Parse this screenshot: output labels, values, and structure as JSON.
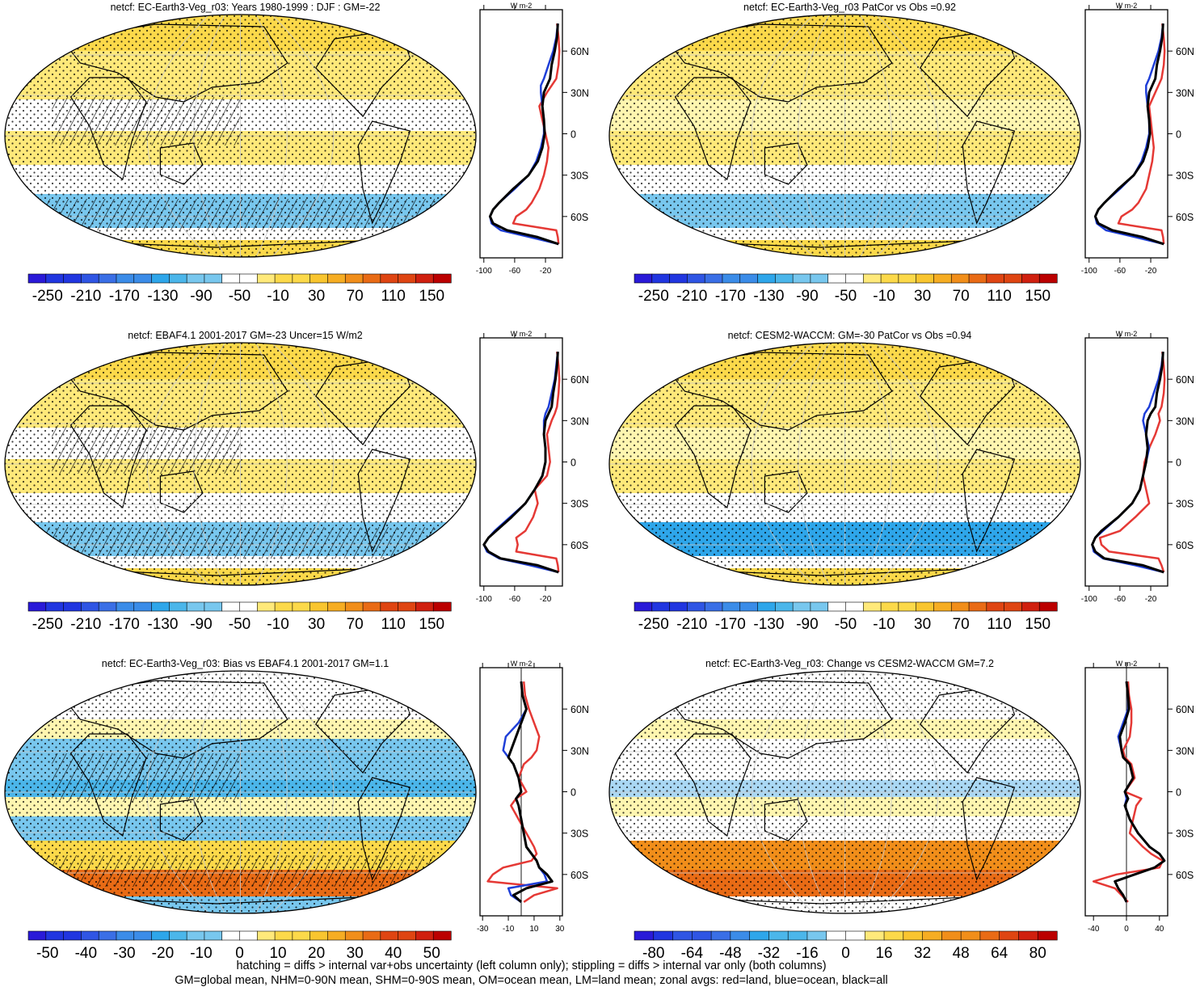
{
  "colors": {
    "land_line": "#e53935",
    "ocean_line": "#1f3fd8",
    "all_line": "#000000",
    "warm_palette": [
      "#fff6b0",
      "#ffe97a",
      "#fcd94a",
      "#f9c52f",
      "#f6ad23",
      "#f18e1a",
      "#e96b15",
      "#df4512",
      "#d0200f",
      "#bb0000"
    ],
    "cool_palette": [
      "#2a1ad8",
      "#2136e0",
      "#2f55e4",
      "#3a6fe6",
      "#3b8ce8",
      "#2ea6ea",
      "#4bb6ea",
      "#78c7ee",
      "#aad8f4"
    ]
  },
  "footer": {
    "line1": "hatching = diffs > internal var+obs uncertainty (left column only); stippling = diffs > internal var only (both columns)",
    "line2": "GM=global mean, NHM=0-90N mean, SHM=0-90S mean, OM=ocean mean, LM=land mean; zonal avgs: red=land, blue=ocean, black=all"
  },
  "chart_data": [
    {
      "type": "heatmap",
      "title": "netcf: EC-Earth3-Veg_r03: Years 1980-1999 : DJF : GM=-22",
      "colorbar_ticks": [
        "-250",
        "-210",
        "-170",
        "-130",
        "-90",
        "-50",
        "-10",
        "30",
        "70",
        "110",
        "150"
      ],
      "colorbar_levels": 24,
      "colorbar_min": -270,
      "colorbar_max": 170,
      "stippling": true,
      "hatching": true,
      "zonal": {
        "unit": "W m-2",
        "lat_ticks": [
          "60N",
          "30N",
          "0",
          "30S",
          "60S"
        ],
        "x_ticks": [
          "-100",
          "-60",
          "-20"
        ],
        "xlim": [
          -105,
          2
        ],
        "lat": [
          80,
          70,
          60,
          50,
          40,
          35,
          30,
          20,
          10,
          0,
          -10,
          -20,
          -30,
          -40,
          -50,
          -55,
          -60,
          -65,
          -70,
          -75,
          -80
        ],
        "series": [
          {
            "name": "land",
            "values": [
              -5,
              -3,
              -2,
              -3,
              -6,
              -12,
              -18,
              -28,
              -24,
              -20,
              -16,
              -18,
              -22,
              -28,
              -38,
              -45,
              -58,
              -62,
              -6,
              -4,
              -3
            ]
          },
          {
            "name": "ocean",
            "values": [
              -4,
              -6,
              -10,
              -16,
              -22,
              -26,
              -26,
              -24,
              -22,
              -22,
              -26,
              -32,
              -42,
              -60,
              -80,
              -88,
              -92,
              -90,
              -78,
              -40,
              -3
            ]
          },
          {
            "name": "all",
            "values": [
              -4,
              -5,
              -8,
              -12,
              -14,
              -18,
              -22,
              -24,
              -22,
              -21,
              -24,
              -30,
              -42,
              -62,
              -80,
              -88,
              -92,
              -88,
              -70,
              -30,
              -3
            ]
          }
        ]
      }
    },
    {
      "type": "heatmap",
      "title": "netcf: EC-Earth3-Veg_r03 PatCor vs Obs =0.92",
      "colorbar_ticks": [
        "-250",
        "-210",
        "-170",
        "-130",
        "-90",
        "-50",
        "-10",
        "30",
        "70",
        "110",
        "150"
      ],
      "colorbar_levels": 24,
      "colorbar_min": -270,
      "colorbar_max": 170,
      "stippling": true,
      "hatching": false,
      "zonal": {
        "unit": "W m-2",
        "lat_ticks": [
          "60N",
          "30N",
          "0",
          "30S",
          "60S"
        ],
        "x_ticks": [
          "-100",
          "-60",
          "-20"
        ],
        "xlim": [
          -105,
          2
        ],
        "lat": [
          80,
          70,
          60,
          50,
          40,
          35,
          30,
          20,
          10,
          0,
          -10,
          -20,
          -30,
          -40,
          -50,
          -55,
          -60,
          -65,
          -70,
          -75,
          -80
        ],
        "series": [
          {
            "name": "land",
            "values": [
              -5,
              -3,
              -2,
              -3,
              -6,
              -10,
              -14,
              -22,
              -20,
              -18,
              -16,
              -18,
              -22,
              -26,
              -36,
              -44,
              -58,
              -62,
              -6,
              -4,
              -3
            ]
          },
          {
            "name": "ocean",
            "values": [
              -4,
              -6,
              -10,
              -16,
              -22,
              -26,
              -26,
              -24,
              -22,
              -22,
              -26,
              -32,
              -42,
              -60,
              -80,
              -88,
              -92,
              -90,
              -78,
              -40,
              -3
            ]
          },
          {
            "name": "all",
            "values": [
              -4,
              -5,
              -8,
              -12,
              -14,
              -18,
              -22,
              -24,
              -22,
              -21,
              -24,
              -30,
              -42,
              -62,
              -80,
              -88,
              -92,
              -88,
              -70,
              -30,
              -3
            ]
          }
        ]
      }
    },
    {
      "type": "heatmap",
      "title": "netcf: EBAF4.1 2001-2017 GM=-23 Uncer=15 W/m2",
      "colorbar_ticks": [
        "-250",
        "-210",
        "-170",
        "-130",
        "-90",
        "-50",
        "-10",
        "30",
        "70",
        "110",
        "150"
      ],
      "colorbar_levels": 24,
      "colorbar_min": -270,
      "colorbar_max": 170,
      "stippling": true,
      "hatching": true,
      "zonal": {
        "unit": "W m-2",
        "lat_ticks": [
          "60N",
          "30N",
          "0",
          "30S",
          "60S"
        ],
        "x_ticks": [
          "-100",
          "-60",
          "-20"
        ],
        "xlim": [
          -105,
          2
        ],
        "lat": [
          80,
          70,
          60,
          50,
          40,
          35,
          30,
          20,
          10,
          0,
          -10,
          -20,
          -30,
          -40,
          -50,
          -55,
          -60,
          -65,
          -70,
          -75,
          -80
        ],
        "series": [
          {
            "name": "land",
            "values": [
              -5,
              -3,
              -2,
              -3,
              -5,
              -8,
              -12,
              -18,
              -16,
              -14,
              -18,
              -34,
              -30,
              -36,
              -46,
              -58,
              -56,
              -58,
              -6,
              -4,
              -3
            ]
          },
          {
            "name": "ocean",
            "values": [
              -4,
              -6,
              -8,
              -12,
              -16,
              -20,
              -22,
              -22,
              -20,
              -20,
              -24,
              -34,
              -46,
              -66,
              -86,
              -94,
              -100,
              -96,
              -80,
              -40,
              -3
            ]
          },
          {
            "name": "all",
            "values": [
              -4,
              -5,
              -7,
              -10,
              -12,
              -16,
              -20,
              -22,
              -20,
              -20,
              -24,
              -34,
              -46,
              -64,
              -84,
              -94,
              -100,
              -94,
              -78,
              -30,
              -3
            ]
          }
        ]
      }
    },
    {
      "type": "heatmap",
      "title": "netcf: CESM2-WACCM: GM=-30 PatCor vs Obs =0.94",
      "colorbar_ticks": [
        "-250",
        "-210",
        "-170",
        "-130",
        "-90",
        "-50",
        "-10",
        "30",
        "70",
        "110",
        "150"
      ],
      "colorbar_levels": 24,
      "colorbar_min": -270,
      "colorbar_max": 170,
      "stippling": true,
      "hatching": false,
      "zonal": {
        "unit": "W m-2",
        "lat_ticks": [
          "60N",
          "30N",
          "0",
          "30S",
          "60S"
        ],
        "x_ticks": [
          "-100",
          "-60",
          "-20"
        ],
        "xlim": [
          -105,
          2
        ],
        "lat": [
          80,
          70,
          60,
          50,
          40,
          35,
          30,
          20,
          10,
          0,
          -10,
          -20,
          -30,
          -40,
          -50,
          -55,
          -60,
          -65,
          -70,
          -75,
          -80
        ],
        "series": [
          {
            "name": "land",
            "values": [
              -5,
              -3,
              -2,
              -3,
              -6,
              -10,
              -8,
              -14,
              -22,
              -28,
              -30,
              -26,
              -22,
              -40,
              -60,
              -86,
              -84,
              -74,
              -10,
              -6,
              -3
            ]
          },
          {
            "name": "ocean",
            "values": [
              -4,
              -6,
              -10,
              -16,
              -22,
              -28,
              -30,
              -26,
              -22,
              -26,
              -30,
              -34,
              -44,
              -62,
              -82,
              -92,
              -96,
              -94,
              -82,
              -40,
              -3
            ]
          },
          {
            "name": "all",
            "values": [
              -4,
              -5,
              -8,
              -12,
              -14,
              -20,
              -24,
              -26,
              -24,
              -26,
              -30,
              -34,
              -44,
              -62,
              -84,
              -92,
              -96,
              -92,
              -80,
              -30,
              -3
            ]
          }
        ]
      }
    },
    {
      "type": "heatmap",
      "title": "netcf: EC-Earth3-Veg_r03: Bias vs EBAF4.1 2001-2017 GM=1.1",
      "colorbar_ticks": [
        "-50",
        "-40",
        "-30",
        "-20",
        "-10",
        "0",
        "10",
        "20",
        "30",
        "40",
        "50"
      ],
      "colorbar_levels": 24,
      "colorbar_min": -55,
      "colorbar_max": 55,
      "stippling": true,
      "hatching": true,
      "zonal": {
        "unit": "W m-2",
        "lat_ticks": [
          "60N",
          "30N",
          "0",
          "30S",
          "60S"
        ],
        "x_ticks": [
          "-30",
          "-10",
          "10",
          "30"
        ],
        "xlim": [
          -32,
          32
        ],
        "zero_line": true,
        "lat": [
          80,
          70,
          60,
          50,
          40,
          30,
          25,
          20,
          10,
          0,
          -5,
          -10,
          -20,
          -30,
          -40,
          -45,
          -50,
          -55,
          -60,
          -65,
          -70,
          -75,
          -80
        ],
        "series": [
          {
            "name": "land",
            "values": [
              2,
              3,
              6,
              10,
              14,
              12,
              8,
              2,
              -2,
              4,
              -4,
              -8,
              -2,
              4,
              10,
              12,
              8,
              -14,
              -22,
              -26,
              28,
              10,
              2
            ]
          },
          {
            "name": "ocean",
            "values": [
              0,
              1,
              4,
              -2,
              -12,
              -14,
              -10,
              -6,
              -2,
              0,
              -4,
              -2,
              0,
              2,
              4,
              8,
              12,
              14,
              18,
              20,
              -10,
              -8,
              0
            ]
          },
          {
            "name": "all",
            "values": [
              0,
              1,
              4,
              0,
              -4,
              -8,
              -10,
              -6,
              -2,
              0,
              -4,
              -2,
              0,
              2,
              4,
              8,
              12,
              14,
              20,
              24,
              4,
              -6,
              0
            ]
          }
        ]
      }
    },
    {
      "type": "heatmap",
      "title": "netcf: EC-Earth3-Veg_r03: Change vs CESM2-WACCM GM=7.2",
      "colorbar_ticks": [
        "-80",
        "-64",
        "-48",
        "-32",
        "-16",
        "0",
        "16",
        "32",
        "48",
        "64",
        "80"
      ],
      "colorbar_levels": 22,
      "colorbar_min": -88,
      "colorbar_max": 88,
      "stippling": true,
      "hatching": false,
      "zonal": {
        "unit": "W m-2",
        "lat_ticks": [
          "60N",
          "30N",
          "0",
          "30S",
          "60S"
        ],
        "x_ticks": [
          "-40",
          "0",
          "40"
        ],
        "xlim": [
          -50,
          50
        ],
        "zero_line": true,
        "lat": [
          80,
          70,
          60,
          50,
          40,
          30,
          25,
          20,
          10,
          0,
          -5,
          -10,
          -20,
          -30,
          -40,
          -45,
          -50,
          -55,
          -60,
          -65,
          -70,
          -75,
          -80
        ],
        "series": [
          {
            "name": "land",
            "values": [
              2,
              3,
              6,
              6,
              4,
              -4,
              -2,
              6,
              10,
              -2,
              18,
              12,
              8,
              4,
              20,
              30,
              44,
              40,
              -12,
              -40,
              -14,
              -6,
              2
            ]
          },
          {
            "name": "ocean",
            "values": [
              0,
              2,
              2,
              -4,
              -10,
              -6,
              -4,
              4,
              8,
              -2,
              0,
              -2,
              4,
              14,
              28,
              40,
              46,
              34,
              10,
              -14,
              -10,
              -4,
              0
            ]
          },
          {
            "name": "all",
            "values": [
              0,
              2,
              3,
              -2,
              -8,
              -6,
              -4,
              4,
              8,
              -2,
              2,
              -2,
              4,
              14,
              28,
              40,
              46,
              34,
              10,
              -14,
              -10,
              -4,
              0
            ]
          }
        ]
      }
    }
  ]
}
